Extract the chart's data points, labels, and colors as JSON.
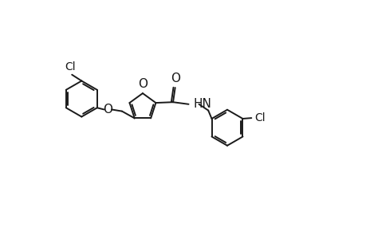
{
  "background_color": "#ffffff",
  "line_color": "#1a1a1a",
  "line_width": 1.4,
  "font_size": 10,
  "figsize": [
    4.6,
    3.0
  ],
  "dpi": 100,
  "xlim": [
    -5.5,
    5.0
  ],
  "ylim": [
    -2.5,
    2.0
  ]
}
